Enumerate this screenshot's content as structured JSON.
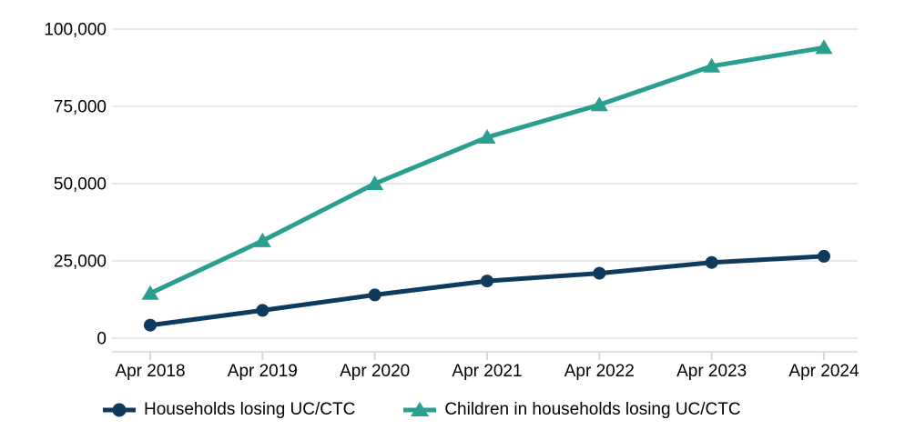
{
  "chart_data": {
    "type": "line",
    "x": [
      "Apr 2018",
      "Apr 2019",
      "Apr 2020",
      "Apr 2021",
      "Apr 2022",
      "Apr 2023",
      "Apr 2024"
    ],
    "series": [
      {
        "name": "Households losing UC/CTC",
        "marker": "circle",
        "color": "#0f3a5d",
        "values": [
          4200,
          9000,
          14000,
          18500,
          21000,
          24500,
          26500
        ]
      },
      {
        "name": "Children in households losing UC/CTC",
        "marker": "triangle",
        "color": "#2a9f90",
        "values": [
          14500,
          31500,
          50000,
          65000,
          75500,
          88000,
          94000
        ]
      }
    ],
    "title": "",
    "xlabel": "",
    "ylabel": "",
    "ylim": [
      0,
      100000
    ],
    "yticks": [
      0,
      25000,
      50000,
      75000,
      100000
    ],
    "ytick_labels": [
      "0",
      "25,000",
      "50,000",
      "75,000",
      "100,000"
    ],
    "grid": true,
    "legend_position": "bottom"
  },
  "colors": {
    "households_line": "#0f3a5d",
    "children_line": "#2a9f90",
    "gridline": "#dcdcdc",
    "axis": "#d9d9d9",
    "text": "#000000",
    "background": "#ffffff"
  }
}
